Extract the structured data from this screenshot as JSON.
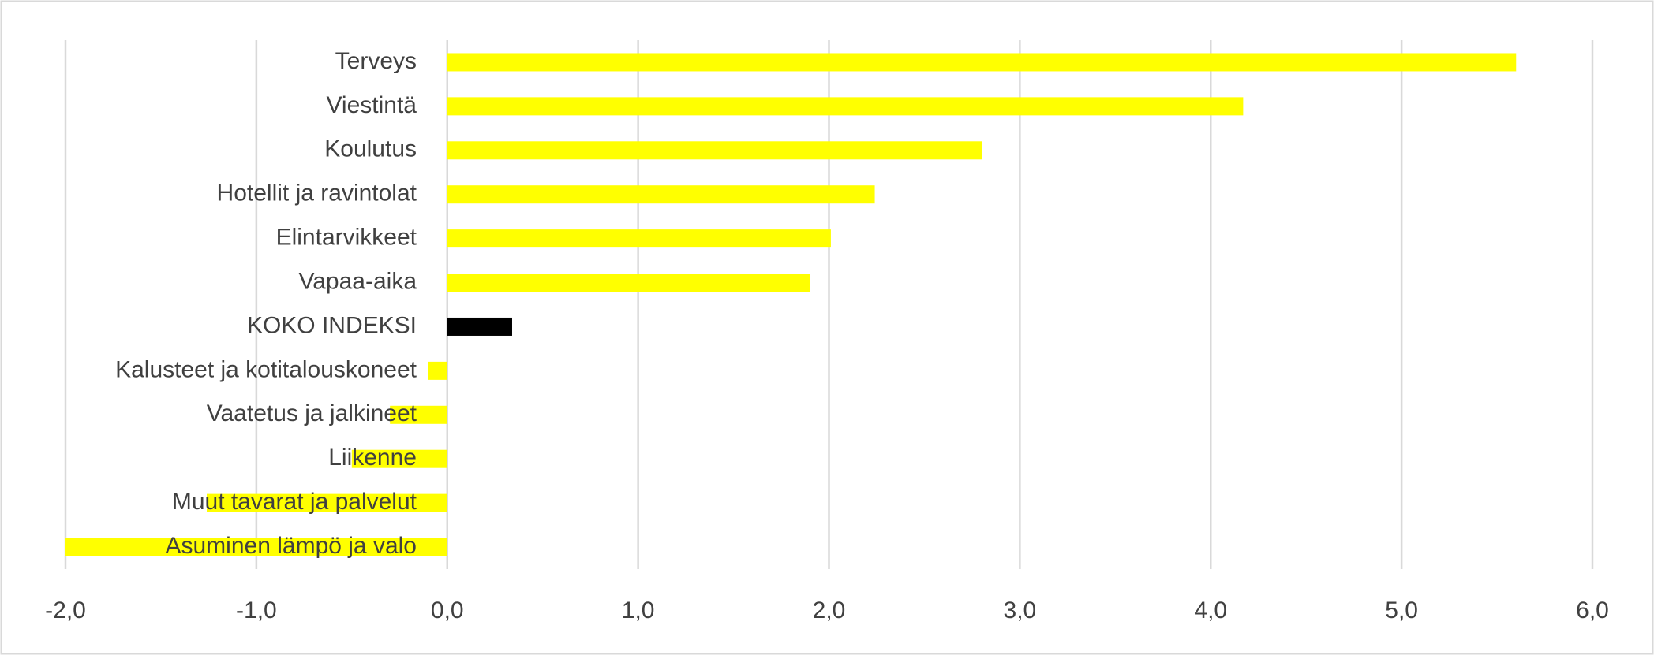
{
  "chart_data": {
    "type": "barh",
    "categories": [
      "Terveys",
      "Viestintä",
      "Koulutus",
      "Hotellit ja ravintolat",
      "Elintarvikkeet",
      "Vapaa-aika",
      "KOKO INDEKSI",
      "Kalusteet ja kotitalouskoneet",
      "Vaatetus ja jalkineet",
      "Liikenne",
      "Muut tavarat ja palvelut",
      "Asuminen lämpö ja valo"
    ],
    "values": [
      5.6,
      4.17,
      2.8,
      2.24,
      2.01,
      1.9,
      0.34,
      -0.1,
      -0.3,
      -0.5,
      -1.26,
      -2.0
    ],
    "colors": [
      "#ffff00",
      "#ffff00",
      "#ffff00",
      "#ffff00",
      "#ffff00",
      "#ffff00",
      "#000000",
      "#ffff00",
      "#ffff00",
      "#ffff00",
      "#ffff00",
      "#ffff00"
    ],
    "xlim": [
      -2,
      6
    ],
    "xticks": [
      {
        "value": -2,
        "label": "-2,0"
      },
      {
        "value": -1,
        "label": "-1,0"
      },
      {
        "value": 0,
        "label": "0,0"
      },
      {
        "value": 1,
        "label": "1,0"
      },
      {
        "value": 2,
        "label": "2,0"
      },
      {
        "value": 3,
        "label": "3,0"
      },
      {
        "value": 4,
        "label": "4,0"
      },
      {
        "value": 5,
        "label": "5,0"
      },
      {
        "value": 6,
        "label": "6,0"
      }
    ],
    "grid": true
  }
}
